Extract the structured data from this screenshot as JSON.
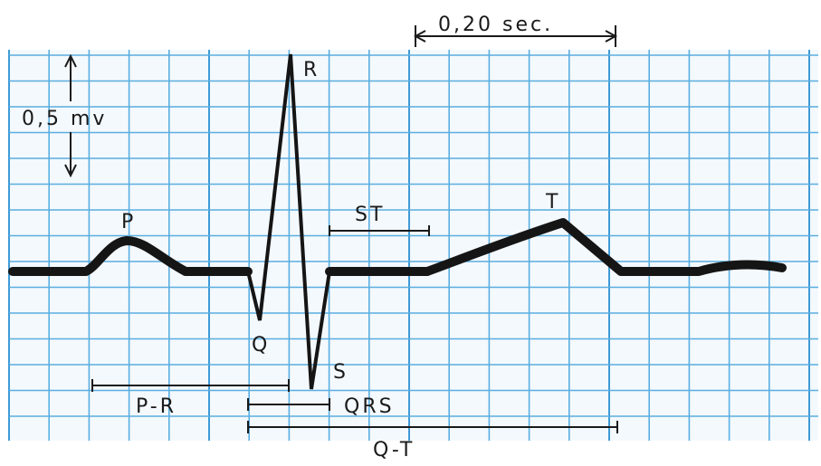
{
  "labels": {
    "p_wave": "P",
    "q_wave": "Q",
    "r_wave": "R",
    "s_wave": "S",
    "t_wave": "T",
    "st_segment": "ST",
    "pr_interval": "P-R",
    "qrs_complex": "QRS",
    "qt_interval": "Q-T",
    "time_scale": "0,20 sec.",
    "amplitude_scale": "0,5 mv"
  },
  "colors": {
    "grid": "#5aaee0",
    "grid_major": "#3f9ad6",
    "trace": "#151515",
    "background": "#ffffff",
    "paper": "#f4f9fd"
  }
}
